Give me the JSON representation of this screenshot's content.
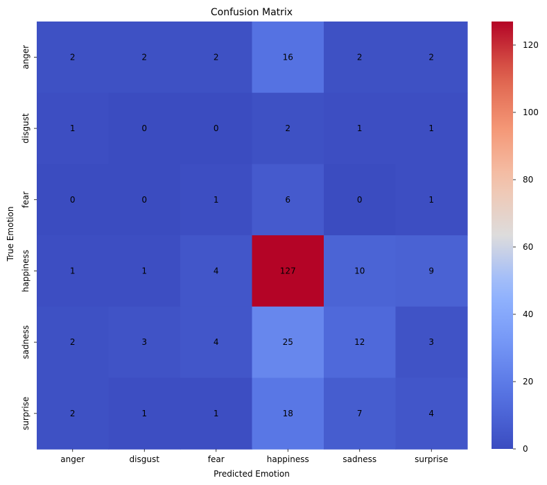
{
  "chart_data": {
    "type": "heatmap",
    "title": "Confusion Matrix",
    "xlabel": "Predicted Emotion",
    "ylabel": "True Emotion",
    "x_categories": [
      "anger",
      "disgust",
      "fear",
      "happiness",
      "sadness",
      "surprise"
    ],
    "y_categories": [
      "anger",
      "disgust",
      "fear",
      "happiness",
      "sadness",
      "surprise"
    ],
    "values": [
      [
        2,
        2,
        2,
        16,
        2,
        2
      ],
      [
        1,
        0,
        0,
        2,
        1,
        1
      ],
      [
        0,
        0,
        1,
        6,
        0,
        1
      ],
      [
        1,
        1,
        4,
        127,
        10,
        9
      ],
      [
        2,
        3,
        4,
        25,
        12,
        3
      ],
      [
        2,
        1,
        1,
        18,
        7,
        4
      ]
    ],
    "colormap": "coolwarm",
    "vmin": 0,
    "vmax": 127,
    "colorbar_ticks": [
      0,
      20,
      40,
      60,
      80,
      100,
      120
    ],
    "annotation_colors": {
      "dark_cell": "#ffffff",
      "light_cell": "#000000"
    }
  }
}
